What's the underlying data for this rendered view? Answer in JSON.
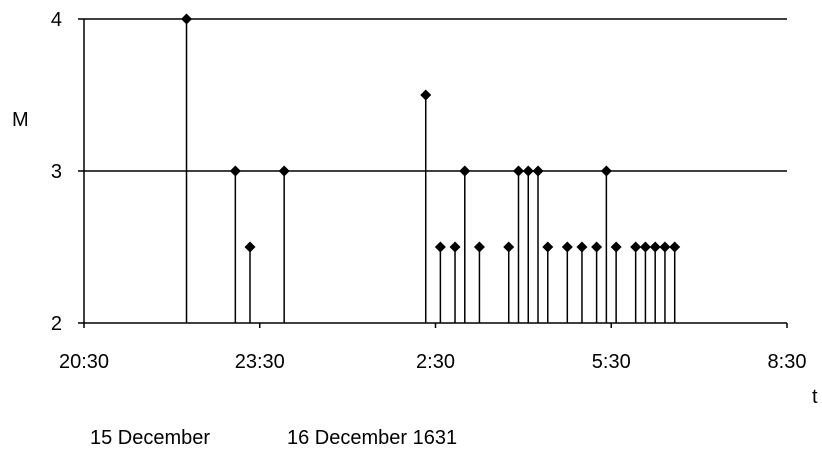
{
  "chart_data": {
    "type": "scatter",
    "style": "stem",
    "marker": "diamond",
    "xlabel": "t",
    "ylabel": "M",
    "x_ticks": [
      "20:30",
      "23:30",
      "2:30",
      "5:30",
      "8:30"
    ],
    "x_range": [
      "20:30",
      "8:30"
    ],
    "y_ticks": [
      "2",
      "3",
      "4"
    ],
    "ylim": [
      2,
      4
    ],
    "grid": "horizontal",
    "baseline": 2,
    "points": [
      {
        "t": "22:15",
        "M": 4.0
      },
      {
        "t": "23:05",
        "M": 3.0
      },
      {
        "t": "23:20",
        "M": 2.5
      },
      {
        "t": "23:55",
        "M": 3.0
      },
      {
        "t": "2:20",
        "M": 3.5
      },
      {
        "t": "2:35",
        "M": 2.5
      },
      {
        "t": "2:50",
        "M": 2.5
      },
      {
        "t": "3:00",
        "M": 3.0
      },
      {
        "t": "3:15",
        "M": 2.5
      },
      {
        "t": "3:45",
        "M": 2.5
      },
      {
        "t": "3:55",
        "M": 3.0
      },
      {
        "t": "4:05",
        "M": 3.0
      },
      {
        "t": "4:15",
        "M": 3.0
      },
      {
        "t": "4:25",
        "M": 2.5
      },
      {
        "t": "4:45",
        "M": 2.5
      },
      {
        "t": "5:00",
        "M": 2.5
      },
      {
        "t": "5:15",
        "M": 2.5
      },
      {
        "t": "5:25",
        "M": 3.0
      },
      {
        "t": "5:35",
        "M": 2.5
      },
      {
        "t": "5:55",
        "M": 2.5
      },
      {
        "t": "6:05",
        "M": 2.5
      },
      {
        "t": "6:15",
        "M": 2.5
      },
      {
        "t": "6:25",
        "M": 2.5
      },
      {
        "t": "6:35",
        "M": 2.5
      }
    ]
  },
  "date_captions": {
    "left": "15 December",
    "right": "16 December 1631"
  }
}
